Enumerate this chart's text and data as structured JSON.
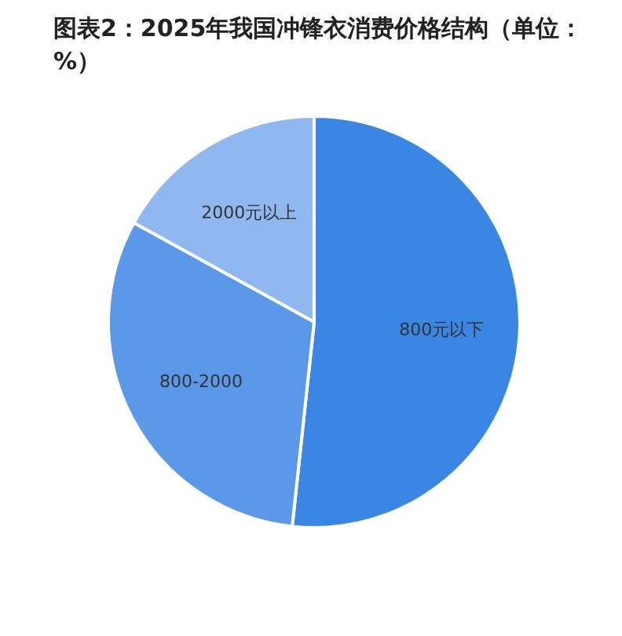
{
  "chart_data": {
    "type": "pie",
    "title": "图表2：2025年我国冲锋衣消费价格结构（单位：%）",
    "categories": [
      "800元以下",
      "800-2000",
      "2000元以上"
    ],
    "values": [
      51.7,
      31.3,
      17.0
    ],
    "colors": [
      "#3a87e3",
      "#5b98e8",
      "#8fb8f0"
    ]
  }
}
